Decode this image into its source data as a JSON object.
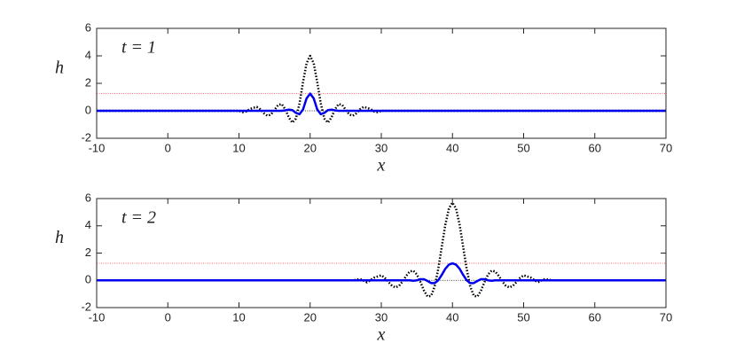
{
  "chart_data": [
    {
      "type": "line",
      "xlabel": "x",
      "ylabel": "h",
      "annotation": "t = 1",
      "xlim": [
        -10,
        70
      ],
      "ylim": [
        -2,
        6
      ],
      "xticks": [
        -10,
        0,
        10,
        20,
        30,
        40,
        50,
        60,
        70
      ],
      "yticks": [
        -2,
        0,
        2,
        4,
        6
      ],
      "series": [
        {
          "color": "#ff6666",
          "style": "dotted",
          "width": 1,
          "x": [
            -10,
            70
          ],
          "values": [
            1.25,
            1.25
          ]
        },
        {
          "color": "#000000",
          "style": "dotted",
          "width": 0.8,
          "x": [
            -10,
            70
          ],
          "values": [
            0,
            0
          ]
        },
        {
          "color": "#000000",
          "style": "dotted",
          "width": 2.5,
          "x": [
            -10,
            10,
            10.5,
            11,
            11.5,
            12,
            12.5,
            13,
            13.5,
            14,
            14.5,
            15,
            15.5,
            16,
            16.5,
            17,
            17.5,
            18,
            18.5,
            19,
            19.5,
            20,
            20.5,
            21,
            21.5,
            22,
            22.5,
            23,
            23.5,
            24,
            24.5,
            25,
            25.5,
            26,
            26.5,
            27,
            27.5,
            28,
            28.5,
            29,
            29.5,
            30,
            70
          ],
          "values": [
            0,
            0,
            -0.1,
            -0.05,
            0.12,
            0.22,
            0.28,
            0.11,
            -0.18,
            -0.36,
            -0.27,
            0.07,
            0.43,
            0.49,
            0.12,
            -0.48,
            -0.86,
            -0.57,
            0.52,
            2.08,
            3.46,
            4,
            3.46,
            2.08,
            0.52,
            -0.57,
            -0.86,
            -0.48,
            0.12,
            0.49,
            0.43,
            0.07,
            -0.27,
            -0.36,
            -0.18,
            0.11,
            0.28,
            0.22,
            0.12,
            -0.05,
            -0.1,
            0,
            0
          ]
        },
        {
          "color": "#0000ee",
          "style": "solid",
          "width": 2.5,
          "x": [
            -10,
            16,
            16.5,
            17,
            17.5,
            18,
            18.5,
            19,
            19.5,
            20,
            20.5,
            21,
            21.5,
            22,
            22.5,
            23,
            23.5,
            24,
            70
          ],
          "values": [
            0,
            0,
            0.03,
            0.08,
            0.05,
            -0.15,
            -0.25,
            0.1,
            0.9,
            1.25,
            0.9,
            0.1,
            -0.25,
            -0.15,
            0.05,
            0.08,
            0.03,
            0,
            0
          ]
        }
      ]
    },
    {
      "type": "line",
      "xlabel": "x",
      "ylabel": "h",
      "annotation": "t = 2",
      "xlim": [
        -10,
        70
      ],
      "ylim": [
        -2,
        6
      ],
      "xticks": [
        -10,
        0,
        10,
        20,
        30,
        40,
        50,
        60,
        70
      ],
      "yticks": [
        -2,
        0,
        2,
        4,
        6
      ],
      "series": [
        {
          "color": "#ff6666",
          "style": "dotted",
          "width": 1,
          "x": [
            -10,
            70
          ],
          "values": [
            1.25,
            1.25
          ]
        },
        {
          "color": "#000000",
          "style": "dotted",
          "width": 0.8,
          "x": [
            -10,
            70
          ],
          "values": [
            0,
            0
          ]
        },
        {
          "color": "#000000",
          "style": "dotted",
          "width": 2.5,
          "x": [
            -10,
            26,
            27,
            28,
            29,
            30,
            30.5,
            31,
            31.5,
            32,
            32.5,
            33,
            33.5,
            34,
            34.5,
            35,
            35.5,
            36,
            36.5,
            37,
            37.5,
            38,
            38.5,
            39,
            39.5,
            40,
            40.5,
            41,
            41.5,
            42,
            42.5,
            43,
            43.5,
            44,
            44.5,
            45,
            45.5,
            46,
            46.5,
            47,
            47.5,
            48,
            48.5,
            49,
            49.5,
            50,
            51,
            52,
            53,
            54,
            70
          ],
          "values": [
            0,
            0,
            0.1,
            -0.15,
            0.2,
            0.37,
            0.18,
            -0.12,
            -0.4,
            -0.52,
            -0.4,
            -0.08,
            0.33,
            0.65,
            0.71,
            0.43,
            -0.13,
            -0.76,
            -1.19,
            -1.14,
            -0.45,
            0.83,
            2.47,
            4.09,
            5.27,
            5.7,
            5.27,
            4.09,
            2.47,
            0.83,
            -0.45,
            -1.14,
            -1.19,
            -0.76,
            -0.13,
            0.43,
            0.71,
            0.65,
            0.33,
            -0.08,
            -0.4,
            -0.52,
            -0.4,
            -0.12,
            0.18,
            0.37,
            0.2,
            -0.15,
            0.1,
            0,
            0
          ]
        },
        {
          "color": "#0000ee",
          "style": "solid",
          "width": 2.5,
          "x": [
            -10,
            34,
            34.5,
            35,
            35.5,
            36,
            36.5,
            37,
            37.5,
            38,
            38.5,
            39,
            39.5,
            40,
            40.5,
            41,
            41.5,
            42,
            42.5,
            43,
            43.5,
            44,
            44.5,
            45,
            45.5,
            46,
            70
          ],
          "values": [
            0,
            0,
            -0.03,
            0,
            0.08,
            0.08,
            -0.05,
            -0.2,
            -0.2,
            0,
            0.4,
            0.85,
            1.15,
            1.25,
            1.15,
            0.85,
            0.4,
            0,
            -0.2,
            -0.2,
            -0.05,
            0.08,
            0.08,
            0,
            -0.03,
            0,
            0
          ]
        }
      ]
    }
  ]
}
